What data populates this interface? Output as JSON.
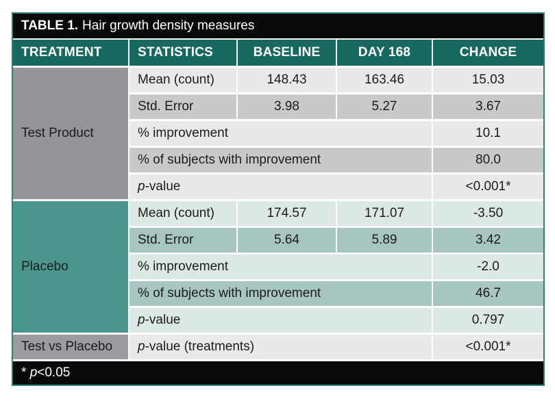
{
  "colors": {
    "teal_header": "#17685e",
    "teal_border": "#2e7f74",
    "black_bar": "#0a0a0a",
    "gray_treatment": "#939598",
    "gray_row_light": "#e9e9eb",
    "gray_row_mid": "#c8c9cb",
    "teal_treatment": "#4b968c",
    "teal_row_light": "#dce8e5",
    "teal_row_mid": "#a8c6c1",
    "gray_summary": "#9b9c9f"
  },
  "title": {
    "bold": "TABLE 1.",
    "rest": "Hair growth density measures"
  },
  "columns": {
    "treatment": "TREATMENT",
    "statistics": "STATISTICS",
    "baseline": "BASELINE",
    "day168": "DAY 168",
    "change": "CHANGE"
  },
  "test_product": {
    "treatment": "Test Product",
    "mean": {
      "stat": "Mean (count)",
      "baseline": "148.43",
      "day168": "163.46",
      "change": "15.03"
    },
    "std_error": {
      "stat": "Std. Error",
      "baseline": "3.98",
      "day168": "5.27",
      "change": "3.67"
    },
    "pct_improvement": {
      "stat": "% improvement",
      "change": "10.1"
    },
    "pct_subjects": {
      "stat": "% of subjects with improvement",
      "change": "80.0"
    },
    "p_value": {
      "stat_italic": "p",
      "stat_rest": "-value",
      "change": "<0.001*"
    }
  },
  "placebo": {
    "treatment": "Placebo",
    "mean": {
      "stat": "Mean (count)",
      "baseline": "174.57",
      "day168": "171.07",
      "change": "-3.50"
    },
    "std_error": {
      "stat": "Std. Error",
      "baseline": "5.64",
      "day168": "5.89",
      "change": "3.42"
    },
    "pct_improvement": {
      "stat": "% improvement",
      "change": "-2.0"
    },
    "pct_subjects": {
      "stat": "% of subjects with improvement",
      "change": "46.7"
    },
    "p_value": {
      "stat_italic": "p",
      "stat_rest": "-value",
      "change": "0.797"
    }
  },
  "summary": {
    "treatment": "Test vs Placebo",
    "stat_italic": "p",
    "stat_rest": "-value (treatments)",
    "change": "<0.001*"
  },
  "footnote": {
    "prefix": "* ",
    "italic": "p",
    "rest": "<0.05"
  },
  "chart_data": {
    "type": "table",
    "title": "TABLE 1. Hair growth density measures",
    "columns": [
      "TREATMENT",
      "STATISTICS",
      "BASELINE",
      "DAY 168",
      "CHANGE"
    ],
    "rows": [
      [
        "Test Product",
        "Mean (count)",
        "148.43",
        "163.46",
        "15.03"
      ],
      [
        "Test Product",
        "Std. Error",
        "3.98",
        "5.27",
        "3.67"
      ],
      [
        "Test Product",
        "% improvement",
        "",
        "",
        "10.1"
      ],
      [
        "Test Product",
        "% of subjects with improvement",
        "",
        "",
        "80.0"
      ],
      [
        "Test Product",
        "p-value",
        "",
        "",
        "<0.001*"
      ],
      [
        "Placebo",
        "Mean (count)",
        "174.57",
        "171.07",
        "-3.50"
      ],
      [
        "Placebo",
        "Std. Error",
        "5.64",
        "5.89",
        "3.42"
      ],
      [
        "Placebo",
        "% improvement",
        "",
        "",
        "-2.0"
      ],
      [
        "Placebo",
        "% of subjects with improvement",
        "",
        "",
        "46.7"
      ],
      [
        "Placebo",
        "p-value",
        "",
        "",
        "0.797"
      ],
      [
        "Test vs Placebo",
        "p-value (treatments)",
        "",
        "",
        "<0.001*"
      ]
    ],
    "footnote": "* p<0.05"
  }
}
